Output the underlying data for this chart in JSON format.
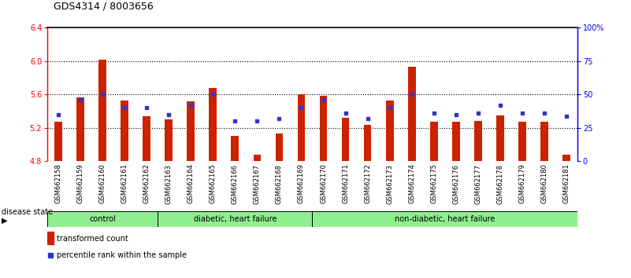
{
  "title": "GDS4314 / 8003656",
  "samples": [
    "GSM662158",
    "GSM662159",
    "GSM662160",
    "GSM662161",
    "GSM662162",
    "GSM662163",
    "GSM662164",
    "GSM662165",
    "GSM662166",
    "GSM662167",
    "GSM662168",
    "GSM662169",
    "GSM662170",
    "GSM662171",
    "GSM662172",
    "GSM662173",
    "GSM662174",
    "GSM662175",
    "GSM662176",
    "GSM662177",
    "GSM662178",
    "GSM662179",
    "GSM662180",
    "GSM662181"
  ],
  "red_values": [
    5.27,
    5.57,
    6.02,
    5.53,
    5.34,
    5.3,
    5.52,
    5.68,
    5.1,
    4.88,
    5.13,
    5.6,
    5.58,
    5.32,
    5.24,
    5.53,
    5.93,
    5.27,
    5.27,
    5.28,
    5.35,
    5.27,
    5.27,
    4.88
  ],
  "blue_values": [
    35,
    46,
    50,
    40,
    40,
    35,
    42,
    50,
    30,
    30,
    32,
    40,
    46,
    36,
    32,
    40,
    50,
    36,
    35,
    36,
    42,
    36,
    36,
    34
  ],
  "group_boundaries": [
    0,
    5,
    12,
    24
  ],
  "group_labels": [
    "control",
    "diabetic, heart failure",
    "non-diabetic, heart failure"
  ],
  "y_min": 4.8,
  "y_max": 6.4,
  "y_ticks": [
    4.8,
    5.2,
    5.6,
    6.0,
    6.4
  ],
  "y2_ticks": [
    0,
    25,
    50,
    75,
    100
  ],
  "y2_tick_labels": [
    "0",
    "25",
    "50",
    "75",
    "100%"
  ],
  "bar_color": "#cc2200",
  "blue_color": "#3333cc",
  "bg_color": "#ffffff",
  "plot_bg": "#ffffff",
  "tick_bg": "#d8d8d8",
  "group_color": "#90ee90",
  "legend_items": [
    "transformed count",
    "percentile rank within the sample"
  ],
  "group_label": "disease state",
  "bar_width": 0.35,
  "title_fontsize": 9,
  "tick_fontsize": 6,
  "axis_fontsize": 7
}
